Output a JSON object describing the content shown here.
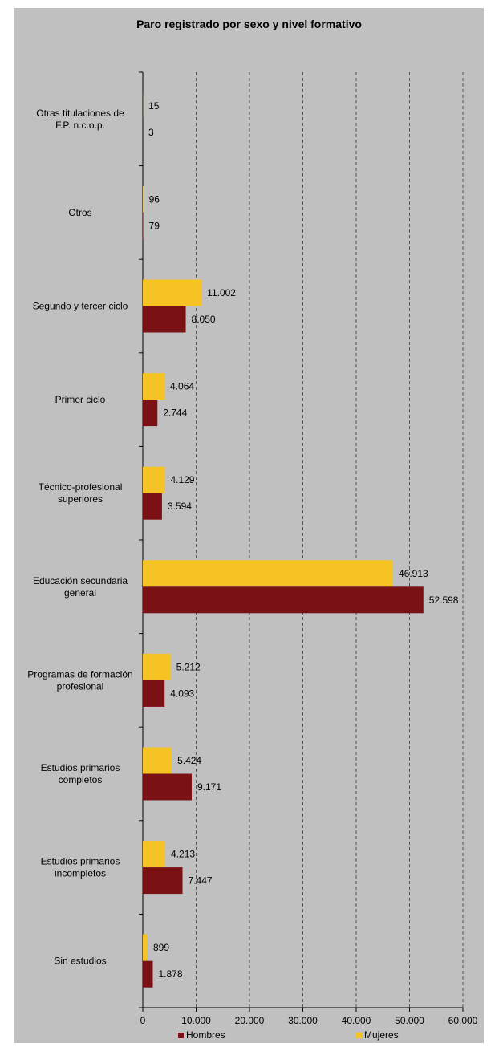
{
  "chart_data": {
    "type": "bar",
    "orientation": "horizontal",
    "title": "Paro registrado por sexo y nivel formativo",
    "categories": [
      "Otras titulaciones de F.P. n.c.o.p.",
      "Otros",
      "Segundo y tercer ciclo",
      "Primer ciclo",
      "Técnico-profesional superiores",
      "Educación secundaria general",
      "Programas de formación profesional",
      "Estudios primarios completos",
      "Estudios primarios incompletos",
      "Sin estudios"
    ],
    "series": [
      {
        "name": "Mujeres",
        "color": "#f5c324",
        "values": [
          15,
          96,
          11002,
          4064,
          4129,
          46913,
          5212,
          5424,
          4213,
          899
        ],
        "labels": [
          "15",
          "96",
          "11.002",
          "4.064",
          "4.129",
          "46.913",
          "5.212",
          "5.424",
          "4.213",
          "899"
        ]
      },
      {
        "name": "Hombres",
        "color": "#7a1215",
        "values": [
          3,
          79,
          8050,
          2744,
          3594,
          52598,
          4093,
          9171,
          7447,
          1878
        ],
        "labels": [
          "3",
          "79",
          "8.050",
          "2.744",
          "3.594",
          "52.598",
          "4.093",
          "9.171",
          "7.447",
          "1.878"
        ]
      }
    ],
    "xlim": [
      0,
      60000
    ],
    "xticks": [
      0,
      10000,
      20000,
      30000,
      40000,
      50000,
      60000
    ],
    "xtick_labels": [
      "0",
      "10.000",
      "20.000",
      "30.000",
      "40.000",
      "50.000",
      "60.000"
    ],
    "grid": "vertical-dashed",
    "legend_position": "bottom"
  },
  "legend": {
    "hombres": "Hombres",
    "mujeres": "Mujeres"
  }
}
